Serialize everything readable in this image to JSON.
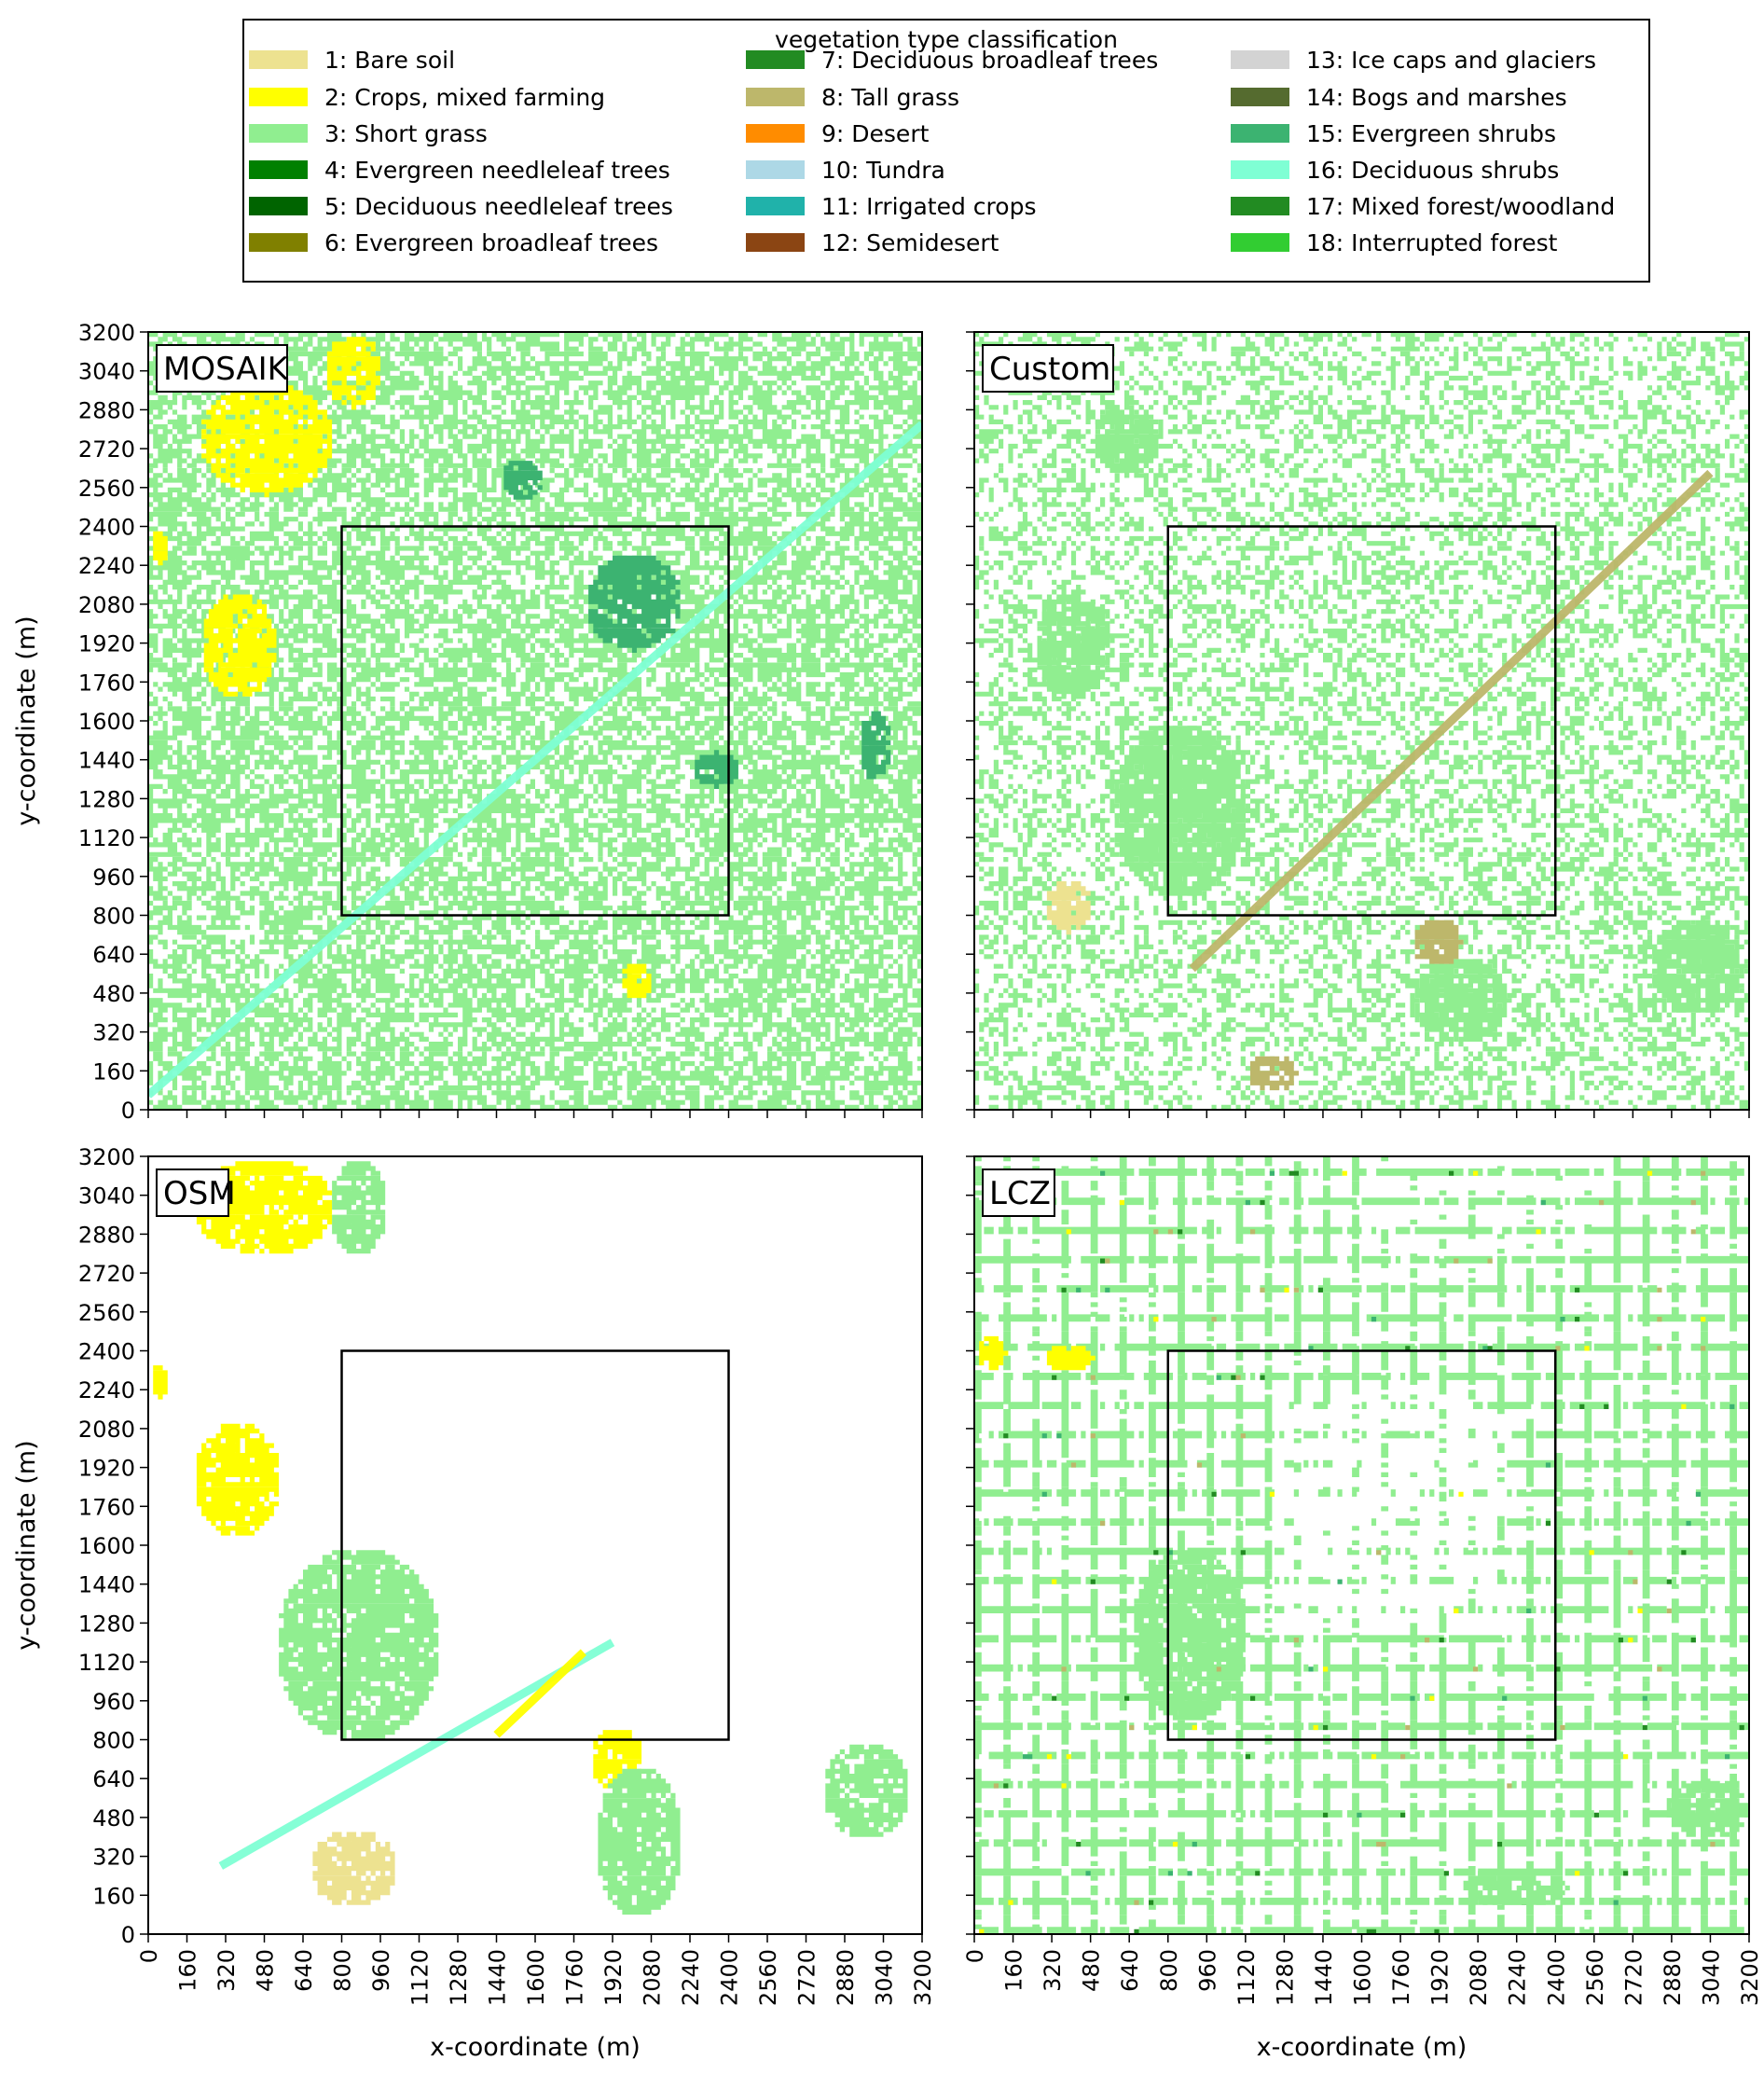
{
  "legend": {
    "title": "vegetation type classification",
    "entries": [
      {
        "label": "1: Bare soil",
        "color": "#ede290"
      },
      {
        "label": "2: Crops, mixed farming",
        "color": "#ffff00"
      },
      {
        "label": "3: Short grass",
        "color": "#90ee90"
      },
      {
        "label": "4: Evergreen needleleaf trees",
        "color": "#008000"
      },
      {
        "label": "5: Deciduous needleleaf trees",
        "color": "#006400"
      },
      {
        "label": "6: Evergreen broadleaf trees",
        "color": "#808000"
      },
      {
        "label": "7: Deciduous broadleaf trees",
        "color": "#228b22"
      },
      {
        "label": "8: Tall grass",
        "color": "#bdb76b"
      },
      {
        "label": "9: Desert",
        "color": "#ff8c00"
      },
      {
        "label": "10: Tundra",
        "color": "#add8e6"
      },
      {
        "label": "11: Irrigated crops",
        "color": "#20b2aa"
      },
      {
        "label": "12: Semidesert",
        "color": "#8b4513"
      },
      {
        "label": "13: Ice caps and glaciers",
        "color": "#d3d3d3"
      },
      {
        "label": "14: Bogs and marshes",
        "color": "#556b2f"
      },
      {
        "label": "15: Evergreen shrubs",
        "color": "#3cb371"
      },
      {
        "label": "16: Deciduous shrubs",
        "color": "#7fffd4"
      },
      {
        "label": "17: Mixed forest/woodland",
        "color": "#228b22"
      },
      {
        "label": "18: Interrupted forest",
        "color": "#32cd32"
      }
    ]
  },
  "chart_data": [
    {
      "type": "heatmap",
      "title": "MOSAIK",
      "xlabel": "",
      "ylabel": "y-coordinate (m)",
      "xlim": [
        0,
        3200
      ],
      "ylim": [
        0,
        3200
      ],
      "x_ticks": [
        0,
        160,
        320,
        480,
        640,
        800,
        960,
        1120,
        1280,
        1440,
        1600,
        1760,
        1920,
        2080,
        2240,
        2400,
        2560,
        2720,
        2880,
        3040,
        3200
      ],
      "y_ticks": [
        0,
        160,
        320,
        480,
        640,
        800,
        960,
        1120,
        1280,
        1440,
        1600,
        1760,
        1920,
        2080,
        2240,
        2400,
        2560,
        2720,
        2880,
        3040,
        3200
      ],
      "x_tick_labels_shown": false,
      "y_tick_labels_shown": true,
      "inner_box": {
        "x": [
          800,
          2400
        ],
        "y": [
          800,
          2400
        ]
      },
      "background_class": "3: Short grass",
      "features": [
        {
          "class": "2: Crops, mixed farming",
          "x": [
            200,
            760
          ],
          "y": [
            2540,
            3000
          ]
        },
        {
          "class": "2: Crops, mixed farming",
          "x": [
            210,
            520
          ],
          "y": [
            1700,
            2140
          ]
        },
        {
          "class": "2: Crops, mixed farming",
          "x": [
            720,
            960
          ],
          "y": [
            2900,
            3200
          ]
        },
        {
          "class": "2: Crops, mixed farming",
          "x": [
            0,
            70
          ],
          "y": [
            2240,
            2400
          ]
        },
        {
          "class": "2: Crops, mixed farming",
          "x": [
            1940,
            2080
          ],
          "y": [
            460,
            620
          ]
        },
        {
          "class": "15: Evergreen shrubs",
          "x": [
            1450,
            1620
          ],
          "y": [
            2520,
            2690
          ]
        },
        {
          "class": "15: Evergreen shrubs",
          "x": [
            2930,
            3060
          ],
          "y": [
            1360,
            1660
          ]
        },
        {
          "class": "15: Evergreen shrubs",
          "x": [
            1800,
            2200
          ],
          "y": [
            1900,
            2300
          ]
        },
        {
          "class": "15: Evergreen shrubs",
          "x": [
            2240,
            2440
          ],
          "y": [
            1340,
            1480
          ]
        },
        {
          "class": "16: Deciduous shrubs",
          "diagonal_band": [
            [
              0,
              60
            ],
            [
              3200,
              2820
            ]
          ]
        }
      ]
    },
    {
      "type": "heatmap",
      "title": "Custom",
      "xlabel": "",
      "ylabel": "",
      "xlim": [
        0,
        3200
      ],
      "ylim": [
        0,
        3200
      ],
      "x_ticks": [
        0,
        160,
        320,
        480,
        640,
        800,
        960,
        1120,
        1280,
        1440,
        1600,
        1760,
        1920,
        2080,
        2240,
        2400,
        2560,
        2720,
        2880,
        3040,
        3200
      ],
      "y_ticks": [
        0,
        160,
        320,
        480,
        640,
        800,
        960,
        1120,
        1280,
        1440,
        1600,
        1760,
        1920,
        2080,
        2240,
        2400,
        2560,
        2720,
        2880,
        3040,
        3200
      ],
      "x_tick_labels_shown": false,
      "y_tick_labels_shown": false,
      "inner_box": {
        "x": [
          800,
          2400
        ],
        "y": [
          800,
          2400
        ]
      },
      "background_class": "3: Short grass",
      "features": [
        {
          "class": "3: Short grass",
          "x": [
            240,
            560
          ],
          "y": [
            1700,
            2130
          ]
        },
        {
          "class": "3: Short grass",
          "x": [
            480,
            760
          ],
          "y": [
            2620,
            2920
          ]
        },
        {
          "class": "3: Short grass",
          "x": [
            560,
            1120
          ],
          "y": [
            880,
            1600
          ]
        },
        {
          "class": "3: Short grass",
          "x": [
            2780,
            3180
          ],
          "y": [
            400,
            800
          ]
        },
        {
          "class": "3: Short grass",
          "x": [
            1800,
            2200
          ],
          "y": [
            280,
            640
          ]
        },
        {
          "class": "1: Bare soil",
          "x": [
            280,
            480
          ],
          "y": [
            740,
            960
          ]
        },
        {
          "class": "8: Tall grass",
          "x": [
            1800,
            2000
          ],
          "y": [
            600,
            800
          ]
        },
        {
          "class": "8: Tall grass",
          "x": [
            1120,
            1320
          ],
          "y": [
            80,
            240
          ]
        },
        {
          "class": "8: Tall grass",
          "diagonal_band": [
            [
              900,
              580
            ],
            [
              3040,
              2620
            ]
          ]
        }
      ]
    },
    {
      "type": "heatmap",
      "title": "OSM",
      "xlabel": "x-coordinate (m)",
      "ylabel": "y-coordinate (m)",
      "xlim": [
        0,
        3200
      ],
      "ylim": [
        0,
        3200
      ],
      "x_ticks": [
        0,
        160,
        320,
        480,
        640,
        800,
        960,
        1120,
        1280,
        1440,
        1600,
        1760,
        1920,
        2080,
        2240,
        2400,
        2560,
        2720,
        2880,
        3040,
        3200
      ],
      "y_ticks": [
        0,
        160,
        320,
        480,
        640,
        800,
        960,
        1120,
        1280,
        1440,
        1600,
        1760,
        1920,
        2080,
        2240,
        2400,
        2560,
        2720,
        2880,
        3040,
        3200
      ],
      "x_tick_labels_shown": true,
      "y_tick_labels_shown": true,
      "inner_box": {
        "x": [
          800,
          2400
        ],
        "y": [
          800,
          2400
        ]
      },
      "background_class": "none",
      "features": [
        {
          "class": "2: Crops, mixed farming",
          "x": [
            180,
            760
          ],
          "y": [
            2800,
            3200
          ]
        },
        {
          "class": "2: Crops, mixed farming",
          "x": [
            180,
            540
          ],
          "y": [
            1640,
            2120
          ]
        },
        {
          "class": "2: Crops, mixed farming",
          "x": [
            1820,
            2040
          ],
          "y": [
            600,
            860
          ]
        },
        {
          "class": "2: Crops, mixed farming",
          "x": [
            0,
            80
          ],
          "y": [
            2200,
            2360
          ]
        },
        {
          "class": "3: Short grass",
          "x": [
            520,
            1200
          ],
          "y": [
            800,
            1600
          ]
        },
        {
          "class": "3: Short grass",
          "x": [
            1840,
            2200
          ],
          "y": [
            80,
            700
          ]
        },
        {
          "class": "3: Short grass",
          "x": [
            2780,
            3140
          ],
          "y": [
            400,
            800
          ]
        },
        {
          "class": "3: Short grass",
          "x": [
            740,
            980
          ],
          "y": [
            2800,
            3200
          ]
        },
        {
          "class": "1: Bare soil",
          "x": [
            660,
            1020
          ],
          "y": [
            120,
            440
          ]
        },
        {
          "class": "16: Deciduous shrubs",
          "diagonal_band": [
            [
              300,
              280
            ],
            [
              1920,
              1200
            ]
          ]
        },
        {
          "class": "2: Crops, mixed farming",
          "diagonal_band": [
            [
              1440,
              820
            ],
            [
              1800,
              1160
            ]
          ]
        }
      ]
    },
    {
      "type": "heatmap",
      "title": "LCZ",
      "xlabel": "x-coordinate (m)",
      "ylabel": "",
      "xlim": [
        0,
        3200
      ],
      "ylim": [
        0,
        3200
      ],
      "x_ticks": [
        0,
        160,
        320,
        480,
        640,
        800,
        960,
        1120,
        1280,
        1440,
        1600,
        1760,
        1920,
        2080,
        2240,
        2400,
        2560,
        2720,
        2880,
        3040,
        3200
      ],
      "y_ticks": [
        0,
        160,
        320,
        480,
        640,
        800,
        960,
        1120,
        1280,
        1440,
        1600,
        1760,
        1920,
        2080,
        2240,
        2400,
        2560,
        2720,
        2880,
        3040,
        3200
      ],
      "x_tick_labels_shown": true,
      "y_tick_labels_shown": false,
      "inner_box": {
        "x": [
          800,
          2400
        ],
        "y": [
          800,
          2400
        ]
      },
      "background_class": "3: Short grass (regular grid pattern)",
      "features": [
        {
          "class": "3: Short grass",
          "x": [
            640,
            1120
          ],
          "y": [
            880,
            1600
          ]
        },
        {
          "class": "3: Short grass",
          "x": [
            2840,
            3200
          ],
          "y": [
            400,
            640
          ]
        },
        {
          "class": "3: Short grass",
          "x": [
            2000,
            2440
          ],
          "y": [
            120,
            280
          ]
        },
        {
          "class": "2: Crops, mixed farming",
          "x": [
            0,
            120
          ],
          "y": [
            2320,
            2480
          ]
        },
        {
          "class": "2: Crops, mixed farming",
          "x": [
            280,
            480
          ],
          "y": [
            2320,
            2440
          ]
        }
      ]
    }
  ]
}
